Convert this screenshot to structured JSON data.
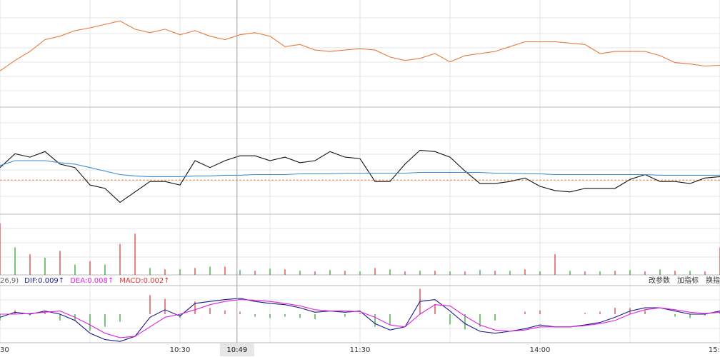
{
  "chart_data": {
    "type": "line",
    "x": [
      0,
      5,
      10,
      15,
      20,
      25,
      30,
      35,
      40,
      45,
      50,
      55,
      60,
      65,
      70,
      75,
      80,
      85,
      90,
      95,
      100,
      105,
      110,
      115,
      120,
      125,
      130,
      135,
      140,
      145,
      150,
      155,
      160,
      165,
      170,
      175,
      180,
      185,
      190,
      195,
      200,
      205,
      210,
      215,
      220,
      225,
      230,
      235,
      240
    ],
    "xlim": [
      0,
      240
    ],
    "xticks": [
      {
        "value": 0,
        "label": "30"
      },
      {
        "value": 60,
        "label": "10:30"
      },
      {
        "value": 120,
        "label": "11:30"
      },
      {
        "value": 180,
        "label": "14:00"
      },
      {
        "value": 240,
        "label": "15:"
      }
    ],
    "crosshair": {
      "value": 79,
      "label": "10:49"
    },
    "panels": [
      {
        "type": "line",
        "ylim": [
          0,
          150
        ],
        "series": [
          {
            "color": "#e8793a",
            "values": [
              50,
              65,
              78,
              95,
              100,
              108,
              112,
              117,
              122,
              110,
              105,
              110,
              102,
              108,
              100,
              95,
              102,
              105,
              100,
              85,
              88,
              80,
              78,
              80,
              82,
              80,
              70,
              65,
              68,
              75,
              63,
              72,
              75,
              78,
              85,
              92,
              92,
              92,
              90,
              88,
              75,
              78,
              78,
              78,
              72,
              62,
              60,
              57,
              58
            ]
          }
        ]
      },
      {
        "type": "line",
        "ylim": [
          0,
          150
        ],
        "reference": 47,
        "reference_color": "#e8793a",
        "series": [
          {
            "color": "#111111",
            "values": [
              65,
              85,
              80,
              88,
              70,
              65,
              40,
              35,
              15,
              30,
              45,
              45,
              40,
              75,
              65,
              75,
              82,
              82,
              75,
              80,
              72,
              75,
              88,
              80,
              78,
              45,
              45,
              70,
              90,
              88,
              80,
              60,
              42,
              42,
              45,
              50,
              38,
              32,
              30,
              35,
              35,
              35,
              48,
              55,
              45,
              45,
              42,
              50,
              52
            ]
          },
          {
            "color": "#3a8ad8",
            "values": [
              68,
              75,
              75,
              75,
              72,
              70,
              65,
              60,
              55,
              53,
              52,
              52,
              52,
              53,
              53,
              54,
              54,
              55,
              55,
              55,
              56,
              56,
              56,
              57,
              57,
              57,
              57,
              57,
              58,
              58,
              58,
              58,
              58,
              57,
              57,
              56,
              56,
              55,
              55,
              55,
              55,
              55,
              55,
              55,
              54,
              54,
              54,
              54,
              54
            ]
          }
        ]
      },
      {
        "type": "bar",
        "ylim": [
          0,
          80
        ],
        "series": [
          {
            "color": "#e03030",
            "values": [
              75,
              null,
              30,
              null,
              35,
              null,
              20,
              null,
              45,
              60,
              null,
              8,
              null,
              10,
              null,
              12,
              null,
              6,
              null,
              8,
              null,
              5,
              null,
              6,
              null,
              10,
              null,
              5,
              null,
              6,
              null,
              5,
              null,
              6,
              null,
              8,
              null,
              30,
              null,
              5,
              null,
              6,
              null,
              5,
              null,
              6,
              null,
              5,
              40
            ]
          },
          {
            "color": "#20a020",
            "values": [
              null,
              40,
              null,
              25,
              null,
              15,
              null,
              15,
              null,
              null,
              10,
              null,
              8,
              null,
              12,
              null,
              7,
              null,
              9,
              null,
              6,
              null,
              7,
              null,
              5,
              null,
              8,
              null,
              6,
              null,
              5,
              null,
              7,
              null,
              6,
              null,
              5,
              null,
              6,
              null,
              5,
              null,
              7,
              null,
              8,
              null,
              6,
              null,
              null
            ]
          }
        ]
      },
      {
        "type": "macd",
        "ylim": [
          -45,
          45
        ],
        "params_label": "26,9)",
        "series": [
          {
            "label": "DIF:0.009↑",
            "color": "#1a1a8c",
            "values": [
              -5,
              3,
              0,
              5,
              0,
              -10,
              -30,
              -40,
              -43,
              -35,
              -5,
              7,
              -3,
              17,
              20,
              23,
              25,
              20,
              17,
              15,
              10,
              3,
              5,
              3,
              5,
              -15,
              -25,
              -20,
              20,
              23,
              5,
              -15,
              -27,
              -30,
              -27,
              -23,
              -17,
              -20,
              -20,
              -17,
              -13,
              -5,
              5,
              10,
              10,
              5,
              0,
              0,
              5
            ]
          },
          {
            "label": "DEA:0.008↑",
            "color": "#e020e0",
            "values": [
              0,
              0,
              1,
              3,
              5,
              -5,
              -17,
              -30,
              -37,
              -35,
              -20,
              -5,
              0,
              7,
              15,
              20,
              23,
              22,
              20,
              17,
              13,
              7,
              5,
              5,
              4,
              -5,
              -17,
              -20,
              0,
              15,
              13,
              -3,
              -17,
              -25,
              -27,
              -25,
              -20,
              -20,
              -20,
              -18,
              -15,
              -10,
              0,
              7,
              10,
              7,
              3,
              1,
              3
            ]
          }
        ],
        "macd": {
          "label": "MACD:0.002↑",
          "up_color": "#e03030",
          "down_color": "#20a020",
          "values": [
            -10,
            6,
            -2,
            4,
            -10,
            -10,
            -26,
            -20,
            -12,
            0,
            30,
            24,
            -6,
            20,
            10,
            6,
            4,
            -4,
            -6,
            -4,
            -6,
            -8,
            0,
            -4,
            2,
            -20,
            -16,
            0,
            40,
            16,
            -16,
            -24,
            -20,
            -10,
            0,
            4,
            6,
            0,
            0,
            2,
            4,
            10,
            10,
            6,
            0,
            -4,
            -6,
            -2,
            4
          ]
        },
        "buttons": [
          "改参数",
          "加指标",
          "换指"
        ]
      }
    ]
  }
}
